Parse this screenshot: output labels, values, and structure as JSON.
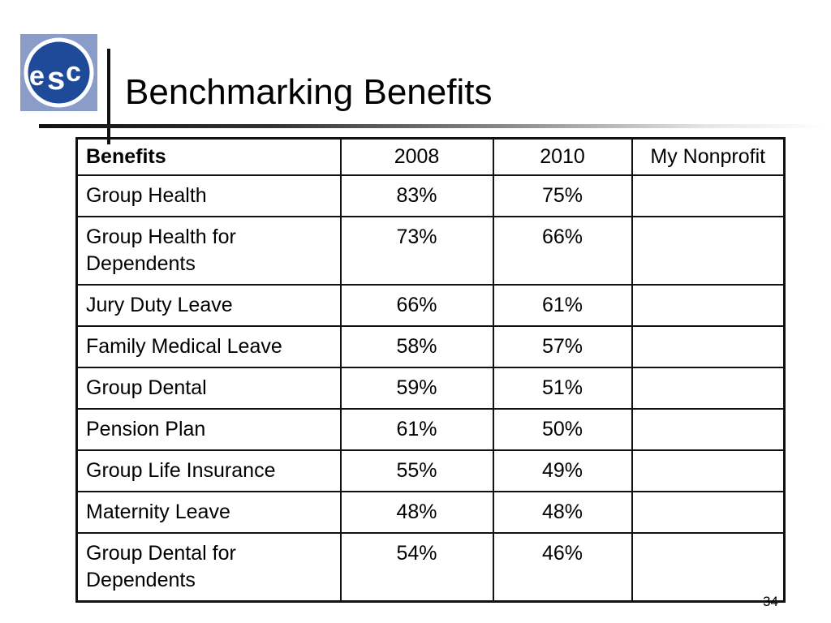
{
  "slide": {
    "title": "Benchmarking Benefits",
    "page_number": "34",
    "logo": {
      "text": "esc",
      "bg_color": "#8a9cc8",
      "circle_color": "#1f4a9a"
    }
  },
  "table": {
    "headers": [
      "Benefits",
      "2008",
      "2010",
      "My Nonprofit"
    ],
    "rows": [
      {
        "benefit": "Group Health",
        "y2008": "83%",
        "y2010": "75%",
        "mine": ""
      },
      {
        "benefit": "Group Health for Dependents",
        "y2008": "73%",
        "y2010": "66%",
        "mine": ""
      },
      {
        "benefit": "Jury Duty Leave",
        "y2008": "66%",
        "y2010": "61%",
        "mine": ""
      },
      {
        "benefit": "Family Medical Leave",
        "y2008": "58%",
        "y2010": "57%",
        "mine": ""
      },
      {
        "benefit": "Group Dental",
        "y2008": "59%",
        "y2010": "51%",
        "mine": ""
      },
      {
        "benefit": "Pension Plan",
        "y2008": "61%",
        "y2010": "50%",
        "mine": ""
      },
      {
        "benefit": "Group Life Insurance",
        "y2008": "55%",
        "y2010": "49%",
        "mine": ""
      },
      {
        "benefit": "Maternity Leave",
        "y2008": "48%",
        "y2010": "48%",
        "mine": ""
      },
      {
        "benefit": "Group Dental for Dependents",
        "y2008": "54%",
        "y2010": "46%",
        "mine": ""
      }
    ]
  }
}
